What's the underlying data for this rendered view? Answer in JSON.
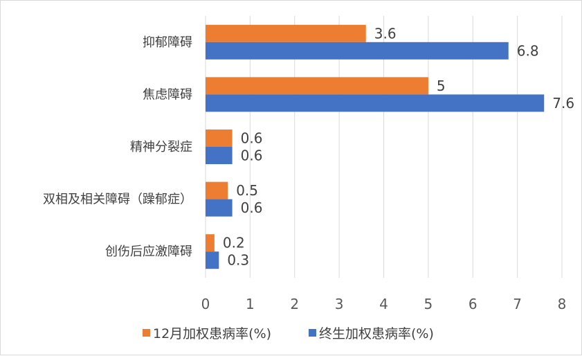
{
  "chart_data": {
    "type": "bar",
    "orientation": "horizontal",
    "categories": [
      "抑郁障碍",
      "焦虑障碍",
      "精神分裂症",
      "双相及相关障碍（躁郁症）",
      "创伤后应激障碍"
    ],
    "series": [
      {
        "name": "12月加权患病率(%)",
        "values": [
          3.6,
          5,
          0.6,
          0.5,
          0.2
        ],
        "color": "#ED7D31"
      },
      {
        "name": "终生加权患病率(%)",
        "values": [
          6.8,
          7.6,
          0.6,
          0.6,
          0.3
        ],
        "color": "#4472C4"
      }
    ],
    "xlim": [
      0,
      8
    ],
    "xticks": [
      0,
      1,
      2,
      3,
      4,
      5,
      6,
      7,
      8
    ],
    "grid": true,
    "legend_position": "bottom",
    "data_labels": true
  }
}
